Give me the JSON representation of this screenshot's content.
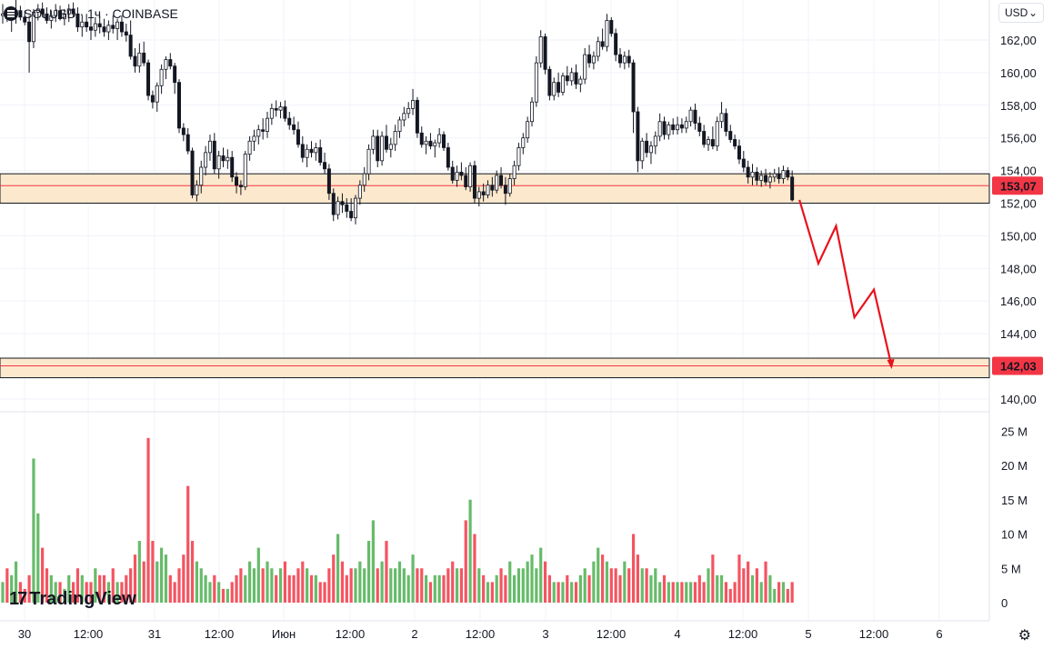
{
  "header": {
    "symbol": "SOLUSD · 1ч · COINBASE"
  },
  "currency": {
    "label": "USD",
    "caret": "⌄"
  },
  "watermark": {
    "text": "TradingView",
    "mark": "17"
  },
  "icons": {
    "settings": "⚙"
  },
  "colors": {
    "up": "#4caf50",
    "down": "#f23645",
    "zone": "#fce8cc",
    "arrow": "#e8121c",
    "grid": "#f0f3fa"
  },
  "chart_data": {
    "type": "candlestick",
    "price_axis": {
      "ticks": [
        "140,00",
        "142,00",
        "144,00",
        "146,00",
        "148,00",
        "150,00",
        "152,00",
        "154,00",
        "156,00",
        "158,00",
        "160,00",
        "162,00"
      ],
      "range": [
        139.5,
        163.6
      ]
    },
    "volume_axis": {
      "ticks": [
        "0",
        "5 M",
        "10 M",
        "15 M",
        "20 M",
        "25 M"
      ],
      "range": [
        0,
        26
      ]
    },
    "time_axis": {
      "labels": [
        "30",
        "12:00",
        "31",
        "12:00",
        "Июн",
        "12:00",
        "2",
        "12:00",
        "3",
        "12:00",
        "4",
        "12:00",
        "5",
        "12:00",
        "6"
      ]
    },
    "zones": [
      {
        "low": 152.0,
        "high": 153.8,
        "label": "153,07",
        "mid": 153.07
      },
      {
        "low": 141.3,
        "high": 142.5,
        "label": "142,03",
        "mid": 142.03
      }
    ],
    "projection": [
      [
        0,
        152.2
      ],
      [
        3.2,
        148.3
      ],
      [
        6.2,
        150.6
      ],
      [
        9.3,
        145.0
      ],
      [
        12.6,
        146.7
      ],
      [
        15.6,
        142.0
      ]
    ],
    "candles": [
      [
        163.5,
        164.2,
        163.0,
        163.6,
        3
      ],
      [
        163.6,
        164.0,
        163.1,
        163.3,
        5
      ],
      [
        163.3,
        164.0,
        162.5,
        163.6,
        4
      ],
      [
        163.6,
        164.5,
        163.0,
        163.8,
        6
      ],
      [
        163.8,
        164.1,
        163.2,
        163.4,
        3
      ],
      [
        163.4,
        163.8,
        162.9,
        163.1,
        2
      ],
      [
        163.1,
        163.5,
        160.0,
        161.9,
        4
      ],
      [
        161.9,
        163.9,
        161.5,
        163.7,
        21
      ],
      [
        163.7,
        164.2,
        163.2,
        163.9,
        13
      ],
      [
        163.9,
        164.3,
        163.4,
        163.6,
        8
      ],
      [
        163.6,
        164.0,
        163.0,
        163.2,
        5
      ],
      [
        163.2,
        163.8,
        162.7,
        163.5,
        4
      ],
      [
        163.5,
        164.2,
        163.1,
        163.8,
        3
      ],
      [
        163.8,
        164.1,
        163.2,
        163.3,
        3
      ],
      [
        163.3,
        163.9,
        162.9,
        163.6,
        2
      ],
      [
        163.6,
        164.2,
        163.1,
        163.9,
        4
      ],
      [
        163.9,
        164.3,
        163.4,
        163.6,
        3
      ],
      [
        163.6,
        164.0,
        162.5,
        162.8,
        5
      ],
      [
        162.8,
        163.5,
        162.2,
        163.1,
        4
      ],
      [
        163.1,
        163.6,
        162.5,
        162.8,
        3
      ],
      [
        162.8,
        163.4,
        162.0,
        162.6,
        3
      ],
      [
        162.6,
        163.4,
        162.2,
        163.0,
        5
      ],
      [
        163.0,
        163.5,
        162.4,
        162.8,
        4
      ],
      [
        162.8,
        163.3,
        162.2,
        162.5,
        4
      ],
      [
        162.5,
        163.2,
        162.0,
        162.9,
        3
      ],
      [
        162.9,
        163.5,
        162.4,
        162.7,
        5
      ],
      [
        162.7,
        163.3,
        162.0,
        163.1,
        3
      ],
      [
        163.1,
        163.5,
        162.2,
        162.5,
        3
      ],
      [
        162.5,
        163.0,
        161.9,
        162.3,
        4
      ],
      [
        162.3,
        163.2,
        160.8,
        161.0,
        5
      ],
      [
        161.0,
        161.5,
        160.0,
        160.4,
        7
      ],
      [
        160.4,
        161.8,
        160.0,
        161.2,
        9
      ],
      [
        161.2,
        161.9,
        160.4,
        160.6,
        6
      ],
      [
        160.6,
        160.8,
        158.3,
        158.6,
        24
      ],
      [
        158.6,
        158.9,
        157.8,
        158.2,
        9
      ],
      [
        158.2,
        159.4,
        157.6,
        159.2,
        6
      ],
      [
        159.2,
        160.5,
        158.7,
        160.2,
        8
      ],
      [
        160.2,
        161.0,
        159.6,
        160.8,
        7
      ],
      [
        160.8,
        161.2,
        160.2,
        160.4,
        4
      ],
      [
        160.4,
        160.6,
        158.7,
        159.4,
        3
      ],
      [
        159.4,
        159.6,
        156.3,
        156.6,
        5
      ],
      [
        156.6,
        156.9,
        155.8,
        156.2,
        7
      ],
      [
        156.2,
        156.6,
        155.0,
        155.2,
        17
      ],
      [
        155.2,
        155.4,
        152.3,
        152.5,
        9
      ],
      [
        152.5,
        153.4,
        152.1,
        153.1,
        6
      ],
      [
        153.1,
        154.6,
        152.6,
        154.2,
        5
      ],
      [
        154.2,
        155.5,
        153.7,
        155.1,
        4
      ],
      [
        155.1,
        156.2,
        154.6,
        155.8,
        3
      ],
      [
        155.8,
        156.3,
        153.8,
        154.1,
        4
      ],
      [
        154.1,
        155.2,
        153.5,
        154.9,
        3
      ],
      [
        154.9,
        155.4,
        154.2,
        154.6,
        2
      ],
      [
        154.6,
        155.3,
        154.1,
        154.8,
        2
      ],
      [
        154.8,
        155.2,
        153.3,
        153.6,
        3
      ],
      [
        153.6,
        153.9,
        152.6,
        153.1,
        4
      ],
      [
        153.1,
        153.4,
        152.5,
        153.0,
        5
      ],
      [
        153.0,
        155.2,
        152.8,
        155.0,
        4
      ],
      [
        155.0,
        156.1,
        154.6,
        155.8,
        6
      ],
      [
        155.8,
        156.5,
        155.2,
        156.1,
        5
      ],
      [
        156.1,
        156.8,
        155.6,
        156.5,
        8
      ],
      [
        156.5,
        157.2,
        155.9,
        156.4,
        5
      ],
      [
        156.4,
        157.6,
        156.0,
        157.2,
        6
      ],
      [
        157.2,
        158.1,
        156.8,
        157.8,
        5
      ],
      [
        157.8,
        158.3,
        157.3,
        157.7,
        4
      ],
      [
        157.7,
        158.2,
        157.2,
        157.9,
        5
      ],
      [
        157.9,
        158.3,
        157.0,
        157.2,
        6
      ],
      [
        157.2,
        157.6,
        156.5,
        156.8,
        4
      ],
      [
        156.8,
        157.3,
        156.2,
        156.5,
        4
      ],
      [
        156.5,
        157.0,
        155.4,
        155.6,
        5
      ],
      [
        155.6,
        156.1,
        154.5,
        154.8,
        6
      ],
      [
        154.8,
        155.6,
        154.2,
        155.3,
        5
      ],
      [
        155.3,
        155.8,
        154.8,
        155.1,
        4
      ],
      [
        155.1,
        155.7,
        154.6,
        155.4,
        4
      ],
      [
        155.4,
        155.9,
        154.3,
        154.5,
        3
      ],
      [
        154.5,
        155.1,
        153.8,
        154.1,
        3
      ],
      [
        154.1,
        154.4,
        152.2,
        152.6,
        5
      ],
      [
        152.6,
        152.9,
        150.9,
        151.3,
        7
      ],
      [
        151.3,
        152.4,
        151.0,
        152.1,
        10
      ],
      [
        152.1,
        152.6,
        151.4,
        151.9,
        6
      ],
      [
        151.9,
        152.3,
        151.1,
        151.5,
        4
      ],
      [
        151.5,
        152.3,
        150.9,
        151.1,
        5
      ],
      [
        151.1,
        152.5,
        150.7,
        152.3,
        5
      ],
      [
        152.3,
        153.4,
        151.9,
        153.1,
        6
      ],
      [
        153.1,
        154.2,
        152.7,
        153.8,
        5
      ],
      [
        153.8,
        155.6,
        153.4,
        155.3,
        9
      ],
      [
        155.3,
        156.5,
        155.0,
        156.1,
        12
      ],
      [
        156.1,
        156.5,
        154.2,
        154.6,
        5
      ],
      [
        154.6,
        156.4,
        154.3,
        156.1,
        6
      ],
      [
        156.1,
        156.8,
        155.1,
        155.3,
        9
      ],
      [
        155.3,
        156.0,
        154.8,
        155.6,
        5
      ],
      [
        155.6,
        156.8,
        155.2,
        156.4,
        5
      ],
      [
        156.4,
        157.3,
        156.0,
        157.1,
        6
      ],
      [
        157.1,
        157.9,
        156.7,
        157.5,
        5
      ],
      [
        157.5,
        158.2,
        157.2,
        157.8,
        4
      ],
      [
        157.8,
        159.0,
        157.4,
        158.3,
        7
      ],
      [
        158.3,
        158.5,
        156.0,
        156.3,
        5
      ],
      [
        156.3,
        156.7,
        155.4,
        155.6,
        5
      ],
      [
        155.6,
        156.1,
        155.0,
        155.8,
        4
      ],
      [
        155.8,
        156.3,
        155.3,
        155.5,
        3
      ],
      [
        155.5,
        155.9,
        154.8,
        155.7,
        4
      ],
      [
        155.7,
        156.6,
        155.4,
        156.2,
        4
      ],
      [
        156.2,
        156.4,
        155.2,
        155.4,
        4
      ],
      [
        155.4,
        155.7,
        154.0,
        154.2,
        5
      ],
      [
        154.2,
        154.6,
        153.2,
        153.4,
        6
      ],
      [
        153.4,
        154.3,
        153.0,
        153.9,
        5
      ],
      [
        153.9,
        154.5,
        153.4,
        153.7,
        5
      ],
      [
        153.7,
        154.2,
        152.8,
        153.0,
        12
      ],
      [
        153.0,
        154.5,
        152.7,
        154.3,
        15
      ],
      [
        154.3,
        154.6,
        152.0,
        152.3,
        10
      ],
      [
        152.3,
        153.0,
        151.8,
        152.7,
        5
      ],
      [
        152.7,
        153.2,
        152.1,
        152.5,
        4
      ],
      [
        152.5,
        153.4,
        152.3,
        153.1,
        3
      ],
      [
        153.1,
        153.6,
        152.4,
        152.8,
        3
      ],
      [
        152.8,
        154.0,
        152.6,
        153.7,
        4
      ],
      [
        153.7,
        154.2,
        152.9,
        153.1,
        5
      ],
      [
        153.1,
        153.6,
        151.9,
        152.6,
        4
      ],
      [
        152.6,
        153.8,
        152.4,
        153.5,
        6
      ],
      [
        153.5,
        154.6,
        153.1,
        154.3,
        4
      ],
      [
        154.3,
        155.7,
        154.0,
        155.4,
        5
      ],
      [
        155.4,
        156.3,
        155.0,
        156.0,
        5
      ],
      [
        156.0,
        157.3,
        155.7,
        157.0,
        6
      ],
      [
        157.0,
        158.5,
        156.7,
        158.2,
        7
      ],
      [
        158.2,
        161.0,
        157.9,
        160.6,
        5
      ],
      [
        160.6,
        162.6,
        160.3,
        162.2,
        8
      ],
      [
        162.2,
        162.4,
        159.9,
        160.2,
        6
      ],
      [
        160.2,
        160.4,
        158.3,
        158.6,
        4
      ],
      [
        158.6,
        159.7,
        158.3,
        159.4,
        3
      ],
      [
        159.4,
        160.0,
        158.5,
        158.8,
        3
      ],
      [
        158.8,
        160.0,
        158.6,
        159.8,
        3
      ],
      [
        159.8,
        160.4,
        159.2,
        159.5,
        4
      ],
      [
        159.5,
        160.3,
        159.2,
        160.0,
        3
      ],
      [
        160.0,
        160.5,
        159.0,
        159.3,
        3
      ],
      [
        159.3,
        159.8,
        158.8,
        159.6,
        4
      ],
      [
        159.6,
        161.5,
        159.3,
        161.1,
        5
      ],
      [
        161.1,
        161.7,
        160.3,
        160.6,
        4
      ],
      [
        160.6,
        161.3,
        160.2,
        161.0,
        6
      ],
      [
        161.0,
        162.2,
        160.7,
        161.9,
        8
      ],
      [
        161.9,
        162.7,
        161.4,
        161.6,
        7
      ],
      [
        161.6,
        163.6,
        161.3,
        163.2,
        6
      ],
      [
        163.2,
        163.4,
        162.2,
        162.4,
        5
      ],
      [
        162.4,
        162.7,
        160.7,
        161.1,
        5
      ],
      [
        161.1,
        161.5,
        160.3,
        160.6,
        4
      ],
      [
        160.6,
        161.3,
        160.2,
        161.0,
        6
      ],
      [
        161.0,
        161.4,
        160.3,
        160.6,
        5
      ],
      [
        160.6,
        160.8,
        156.3,
        157.6,
        10
      ],
      [
        157.6,
        157.9,
        153.9,
        154.6,
        7
      ],
      [
        154.6,
        156.0,
        154.1,
        155.8,
        5
      ],
      [
        155.8,
        156.3,
        154.8,
        155.1,
        5
      ],
      [
        155.1,
        155.8,
        154.4,
        155.5,
        4
      ],
      [
        155.5,
        156.4,
        155.0,
        156.1,
        5
      ],
      [
        156.1,
        157.5,
        155.8,
        157.0,
        3
      ],
      [
        157.0,
        157.3,
        155.9,
        156.2,
        4
      ],
      [
        156.2,
        157.0,
        155.9,
        156.8,
        3
      ],
      [
        156.8,
        157.2,
        156.2,
        156.5,
        3
      ],
      [
        156.5,
        157.3,
        156.2,
        156.8,
        3
      ],
      [
        156.8,
        157.2,
        156.3,
        156.6,
        3
      ],
      [
        156.6,
        157.3,
        156.3,
        157.0,
        3
      ],
      [
        157.0,
        157.9,
        156.7,
        157.7,
        3
      ],
      [
        157.7,
        158.1,
        156.5,
        156.9,
        3
      ],
      [
        156.9,
        157.3,
        156.1,
        156.4,
        4
      ],
      [
        156.4,
        156.8,
        155.4,
        155.6,
        3
      ],
      [
        155.6,
        156.1,
        155.2,
        155.9,
        5
      ],
      [
        155.9,
        156.7,
        155.3,
        155.5,
        7
      ],
      [
        155.5,
        157.3,
        155.2,
        157.0,
        4
      ],
      [
        157.0,
        158.2,
        156.6,
        157.5,
        4
      ],
      [
        157.5,
        157.8,
        156.1,
        156.4,
        3
      ],
      [
        156.4,
        156.8,
        155.7,
        155.9,
        2
      ],
      [
        155.9,
        156.2,
        155.3,
        155.5,
        3
      ],
      [
        155.5,
        155.9,
        154.4,
        154.7,
        7
      ],
      [
        154.7,
        155.2,
        153.9,
        154.2,
        5
      ],
      [
        154.2,
        154.6,
        153.2,
        153.6,
        6
      ],
      [
        153.6,
        154.4,
        153.1,
        153.9,
        4
      ],
      [
        153.9,
        154.2,
        153.1,
        153.4,
        5
      ],
      [
        153.4,
        154.0,
        153.0,
        153.7,
        3
      ],
      [
        153.7,
        154.1,
        153.1,
        153.3,
        6
      ],
      [
        153.3,
        153.9,
        152.9,
        153.6,
        4
      ],
      [
        153.6,
        154.1,
        153.3,
        153.8,
        2
      ],
      [
        153.8,
        154.2,
        153.2,
        153.5,
        3
      ],
      [
        153.5,
        154.3,
        153.2,
        154.0,
        3
      ],
      [
        154.0,
        154.2,
        153.4,
        153.6,
        2
      ],
      [
        153.6,
        154.0,
        152.1,
        152.2,
        3
      ]
    ]
  }
}
